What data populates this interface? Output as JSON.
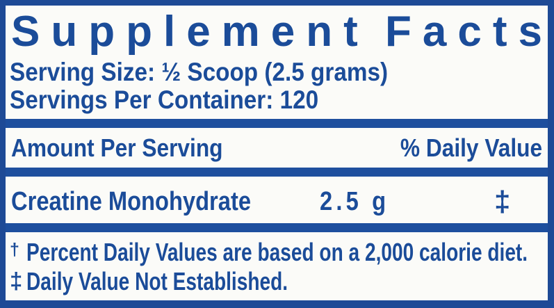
{
  "colors": {
    "text_blue": "#1b4c99",
    "bar_blue": "#1e4f9e",
    "border_blue": "#1e4a96",
    "background": "#fbfbf8"
  },
  "title": {
    "word1": "Supplement",
    "word2": "Facts"
  },
  "serving_info": {
    "serving_size": "Serving Size: ½ Scoop (2.5 grams)",
    "servings_per_container": "Servings Per Container: 120"
  },
  "table": {
    "header": {
      "left": "Amount Per Serving",
      "right": "% Daily Value"
    },
    "rows": [
      {
        "name": "Creatine Monohydrate",
        "amount": "2.5 g",
        "daily_value": "‡"
      }
    ]
  },
  "footnotes": [
    {
      "symbol": "†",
      "text": "Percent Daily Values are based on a 2,000 calorie diet."
    },
    {
      "symbol": "‡",
      "text": "Daily Value Not Established."
    }
  ]
}
